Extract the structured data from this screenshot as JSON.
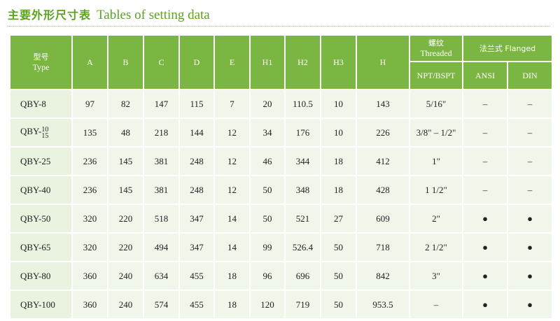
{
  "title": {
    "cn": "主要外形尺寸表",
    "en": "Tables of setting data"
  },
  "headers": {
    "type_cn": "型号",
    "type_en": "Type",
    "A": "A",
    "B": "B",
    "C": "C",
    "D": "D",
    "E": "E",
    "H1": "H1",
    "H2": "H2",
    "H3": "H3",
    "H": "H",
    "threaded_cn": "螺纹",
    "threaded_en": "Threaded",
    "flanged": "法兰式 Flanged",
    "npt": "NPT/BSPT",
    "ansi": "ANSI",
    "din": "DIN"
  },
  "rows": [
    {
      "prefix": "QBY-8",
      "frac_top": "",
      "frac_bot": "",
      "A": "97",
      "B": "82",
      "C": "147",
      "D": "115",
      "E": "7",
      "H1": "20",
      "H2": "110.5",
      "H3": "10",
      "H": "143",
      "npt": "5/16\"",
      "ansi": "–",
      "din": "–"
    },
    {
      "prefix": "QBY-",
      "frac_top": "10",
      "frac_bot": "15",
      "A": "135",
      "B": "48",
      "C": "218",
      "D": "144",
      "E": "12",
      "H1": "34",
      "H2": "176",
      "H3": "10",
      "H": "226",
      "npt": "3/8\" – 1/2\"",
      "ansi": "–",
      "din": "–"
    },
    {
      "prefix": "QBY-25",
      "frac_top": "",
      "frac_bot": "",
      "A": "236",
      "B": "145",
      "C": "381",
      "D": "248",
      "E": "12",
      "H1": "46",
      "H2": "344",
      "H3": "18",
      "H": "412",
      "npt": "1\"",
      "ansi": "–",
      "din": "–"
    },
    {
      "prefix": "QBY-40",
      "frac_top": "",
      "frac_bot": "",
      "A": "236",
      "B": "145",
      "C": "381",
      "D": "248",
      "E": "12",
      "H1": "50",
      "H2": "348",
      "H3": "18",
      "H": "428",
      "npt": "1 1/2\"",
      "ansi": "–",
      "din": "–"
    },
    {
      "prefix": "QBY-50",
      "frac_top": "",
      "frac_bot": "",
      "A": "320",
      "B": "220",
      "C": "518",
      "D": "347",
      "E": "14",
      "H1": "50",
      "H2": "521",
      "H3": "27",
      "H": "609",
      "npt": "2\"",
      "ansi": "●",
      "din": "●"
    },
    {
      "prefix": "QBY-65",
      "frac_top": "",
      "frac_bot": "",
      "A": "320",
      "B": "220",
      "C": "494",
      "D": "347",
      "E": "14",
      "H1": "99",
      "H2": "526.4",
      "H3": "50",
      "H": "718",
      "npt": "2 1/2\"",
      "ansi": "●",
      "din": "●"
    },
    {
      "prefix": "QBY-80",
      "frac_top": "",
      "frac_bot": "",
      "A": "360",
      "B": "240",
      "C": "634",
      "D": "455",
      "E": "18",
      "H1": "96",
      "H2": "696",
      "H3": "50",
      "H": "842",
      "npt": "3\"",
      "ansi": "●",
      "din": "●"
    },
    {
      "prefix": "QBY-100",
      "frac_top": "",
      "frac_bot": "",
      "A": "360",
      "B": "240",
      "C": "574",
      "D": "455",
      "E": "18",
      "H1": "120",
      "H2": "719",
      "H3": "50",
      "H": "953.5",
      "npt": "–",
      "ansi": "●",
      "din": "●"
    }
  ],
  "colors": {
    "accent": "#5aa321",
    "header_bg": "#7cb642",
    "cell_bg": "#f0f7ea"
  }
}
